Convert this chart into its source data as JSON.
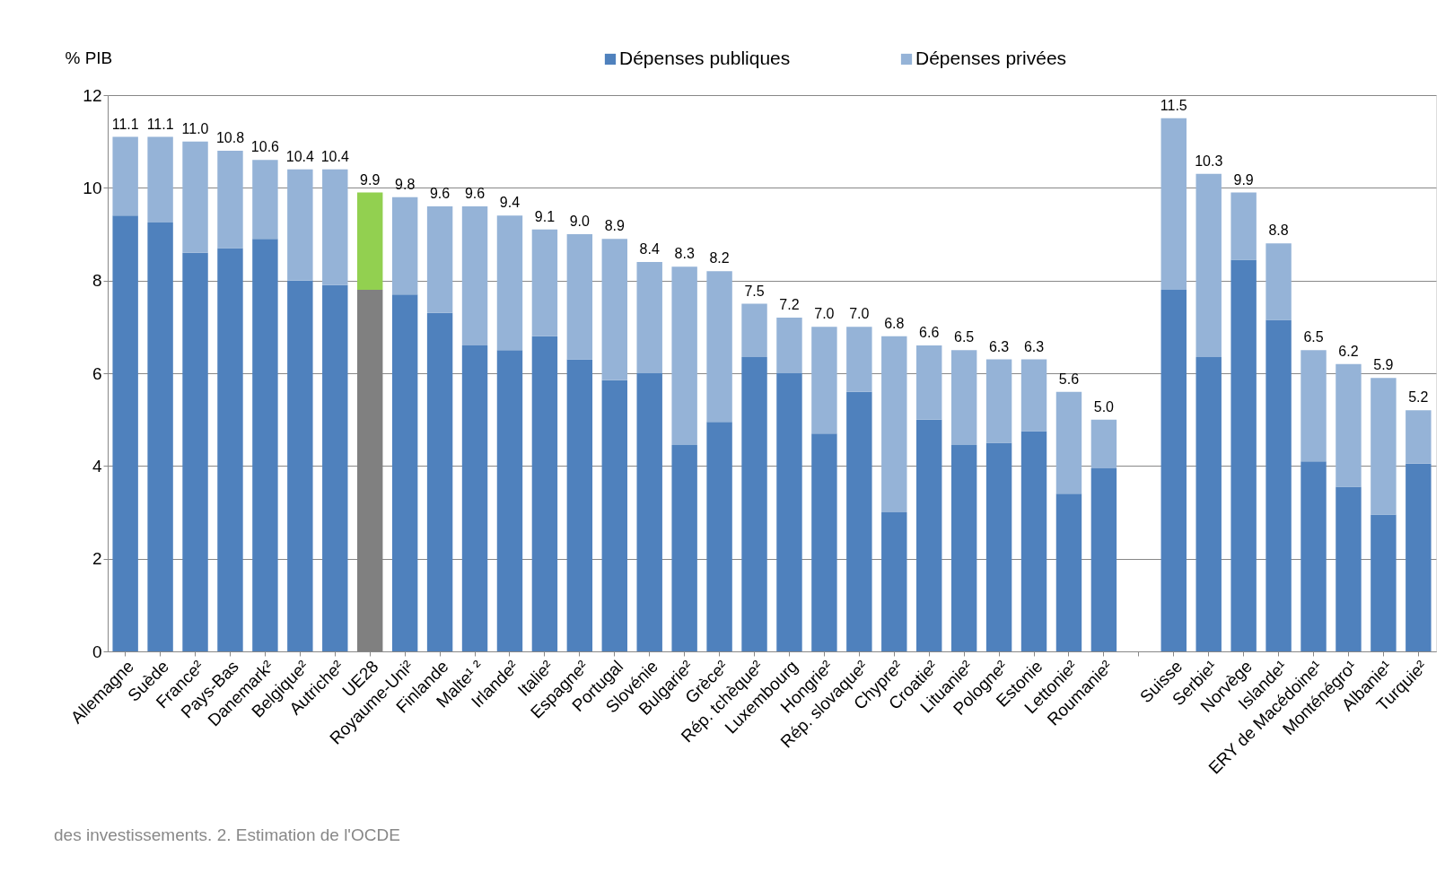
{
  "chart_data": {
    "type": "bar",
    "stacked": true,
    "ylabel": "% PIB",
    "categories": [
      "Allemagne",
      "Suède",
      "France²",
      "Pays-Bas",
      "Danemark²",
      "Belgique²",
      "Autriche²",
      "UE28",
      "Royaume-Uni²",
      "Finlande",
      "Malte¹ ²",
      "Irlande²",
      "Italie²",
      "Espagne²",
      "Portugal",
      "Slovénie",
      "Bulgarie²",
      "Grèce²",
      "Rép. tchèque²",
      "Luxembourg",
      "Hongrie²",
      "Rép. slovaque²",
      "Chypre²",
      "Croatie²",
      "Lituanie²",
      "Pologne²",
      "Estonie",
      "Lettonie²",
      "Roumanie²",
      null,
      "Suisse",
      "Serbie¹",
      "Norvège",
      "Islande¹",
      "ERY de Macédoine¹",
      "Monténégro¹",
      "Albanie¹",
      "Turquie²"
    ],
    "series": [
      {
        "name": "Dépenses publiques",
        "color": "#4f81bd",
        "colors": [
          "#4f81bd",
          "#4f81bd",
          "#4f81bd",
          "#4f81bd",
          "#4f81bd",
          "#4f81bd",
          "#4f81bd",
          "#808080",
          "#4f81bd",
          "#4f81bd",
          "#4f81bd",
          "#4f81bd",
          "#4f81bd",
          "#4f81bd",
          "#4f81bd",
          "#4f81bd",
          "#4f81bd",
          "#4f81bd",
          "#4f81bd",
          "#4f81bd",
          "#4f81bd",
          "#4f81bd",
          "#4f81bd",
          "#4f81bd",
          "#4f81bd",
          "#4f81bd",
          "#4f81bd",
          "#4f81bd",
          "#4f81bd",
          "#4f81bd",
          "#4f81bd",
          "#4f81bd",
          "#4f81bd",
          "#4f81bd",
          "#4f81bd",
          "#4f81bd",
          "#4f81bd",
          "#4f81bd"
        ],
        "values": [
          9.4,
          9.25,
          8.6,
          8.7,
          8.9,
          8.0,
          7.9,
          7.8,
          7.7,
          7.3,
          6.6,
          6.5,
          6.8,
          6.3,
          5.85,
          6.0,
          4.45,
          4.95,
          6.35,
          6.0,
          4.7,
          5.6,
          3.0,
          5.0,
          4.45,
          4.5,
          4.75,
          3.4,
          3.95,
          null,
          7.8,
          6.35,
          8.45,
          7.15,
          4.1,
          3.55,
          2.95,
          4.05
        ]
      },
      {
        "name": "Dépenses privées",
        "color": "#95b3d7",
        "colors": [
          "#95b3d7",
          "#95b3d7",
          "#95b3d7",
          "#95b3d7",
          "#95b3d7",
          "#95b3d7",
          "#95b3d7",
          "#92d050",
          "#95b3d7",
          "#95b3d7",
          "#95b3d7",
          "#95b3d7",
          "#95b3d7",
          "#95b3d7",
          "#95b3d7",
          "#95b3d7",
          "#95b3d7",
          "#95b3d7",
          "#95b3d7",
          "#95b3d7",
          "#95b3d7",
          "#95b3d7",
          "#95b3d7",
          "#95b3d7",
          "#95b3d7",
          "#95b3d7",
          "#95b3d7",
          "#95b3d7",
          "#95b3d7",
          "#95b3d7",
          "#95b3d7",
          "#95b3d7",
          "#95b3d7",
          "#95b3d7",
          "#95b3d7",
          "#95b3d7",
          "#95b3d7",
          "#95b3d7"
        ],
        "values": [
          1.7,
          1.85,
          2.4,
          2.1,
          1.7,
          2.4,
          2.5,
          2.1,
          2.1,
          2.3,
          3.0,
          2.9,
          2.3,
          2.7,
          3.05,
          2.4,
          3.85,
          3.25,
          1.15,
          1.2,
          2.3,
          1.4,
          3.8,
          1.6,
          2.05,
          1.8,
          1.55,
          2.2,
          1.05,
          null,
          3.7,
          3.95,
          1.45,
          1.65,
          2.4,
          2.65,
          2.95,
          1.15
        ]
      }
    ],
    "totals": [
      "11.1",
      "11.1",
      "11.0",
      "10.8",
      "10.6",
      "10.4",
      "10.4",
      "9.9",
      "9.8",
      "9.6",
      "9.6",
      "9.4",
      "9.1",
      "9.0",
      "8.9",
      "8.4",
      "8.3",
      "8.2",
      "7.5",
      "7.2",
      "7.0",
      "7.0",
      "6.8",
      "6.6",
      "6.5",
      "6.3",
      "6.3",
      "5.6",
      "5.0",
      null,
      "11.5",
      "10.3",
      "9.9",
      "8.8",
      "6.5",
      "6.2",
      "5.9",
      "5.2"
    ],
    "ylim": [
      0,
      12
    ],
    "yticks": [
      0,
      2,
      4,
      6,
      8,
      10,
      12
    ],
    "grid": "y",
    "legend": "top",
    "annotations": [
      "des investissements. 2. Estimation de l'OCDE"
    ]
  }
}
